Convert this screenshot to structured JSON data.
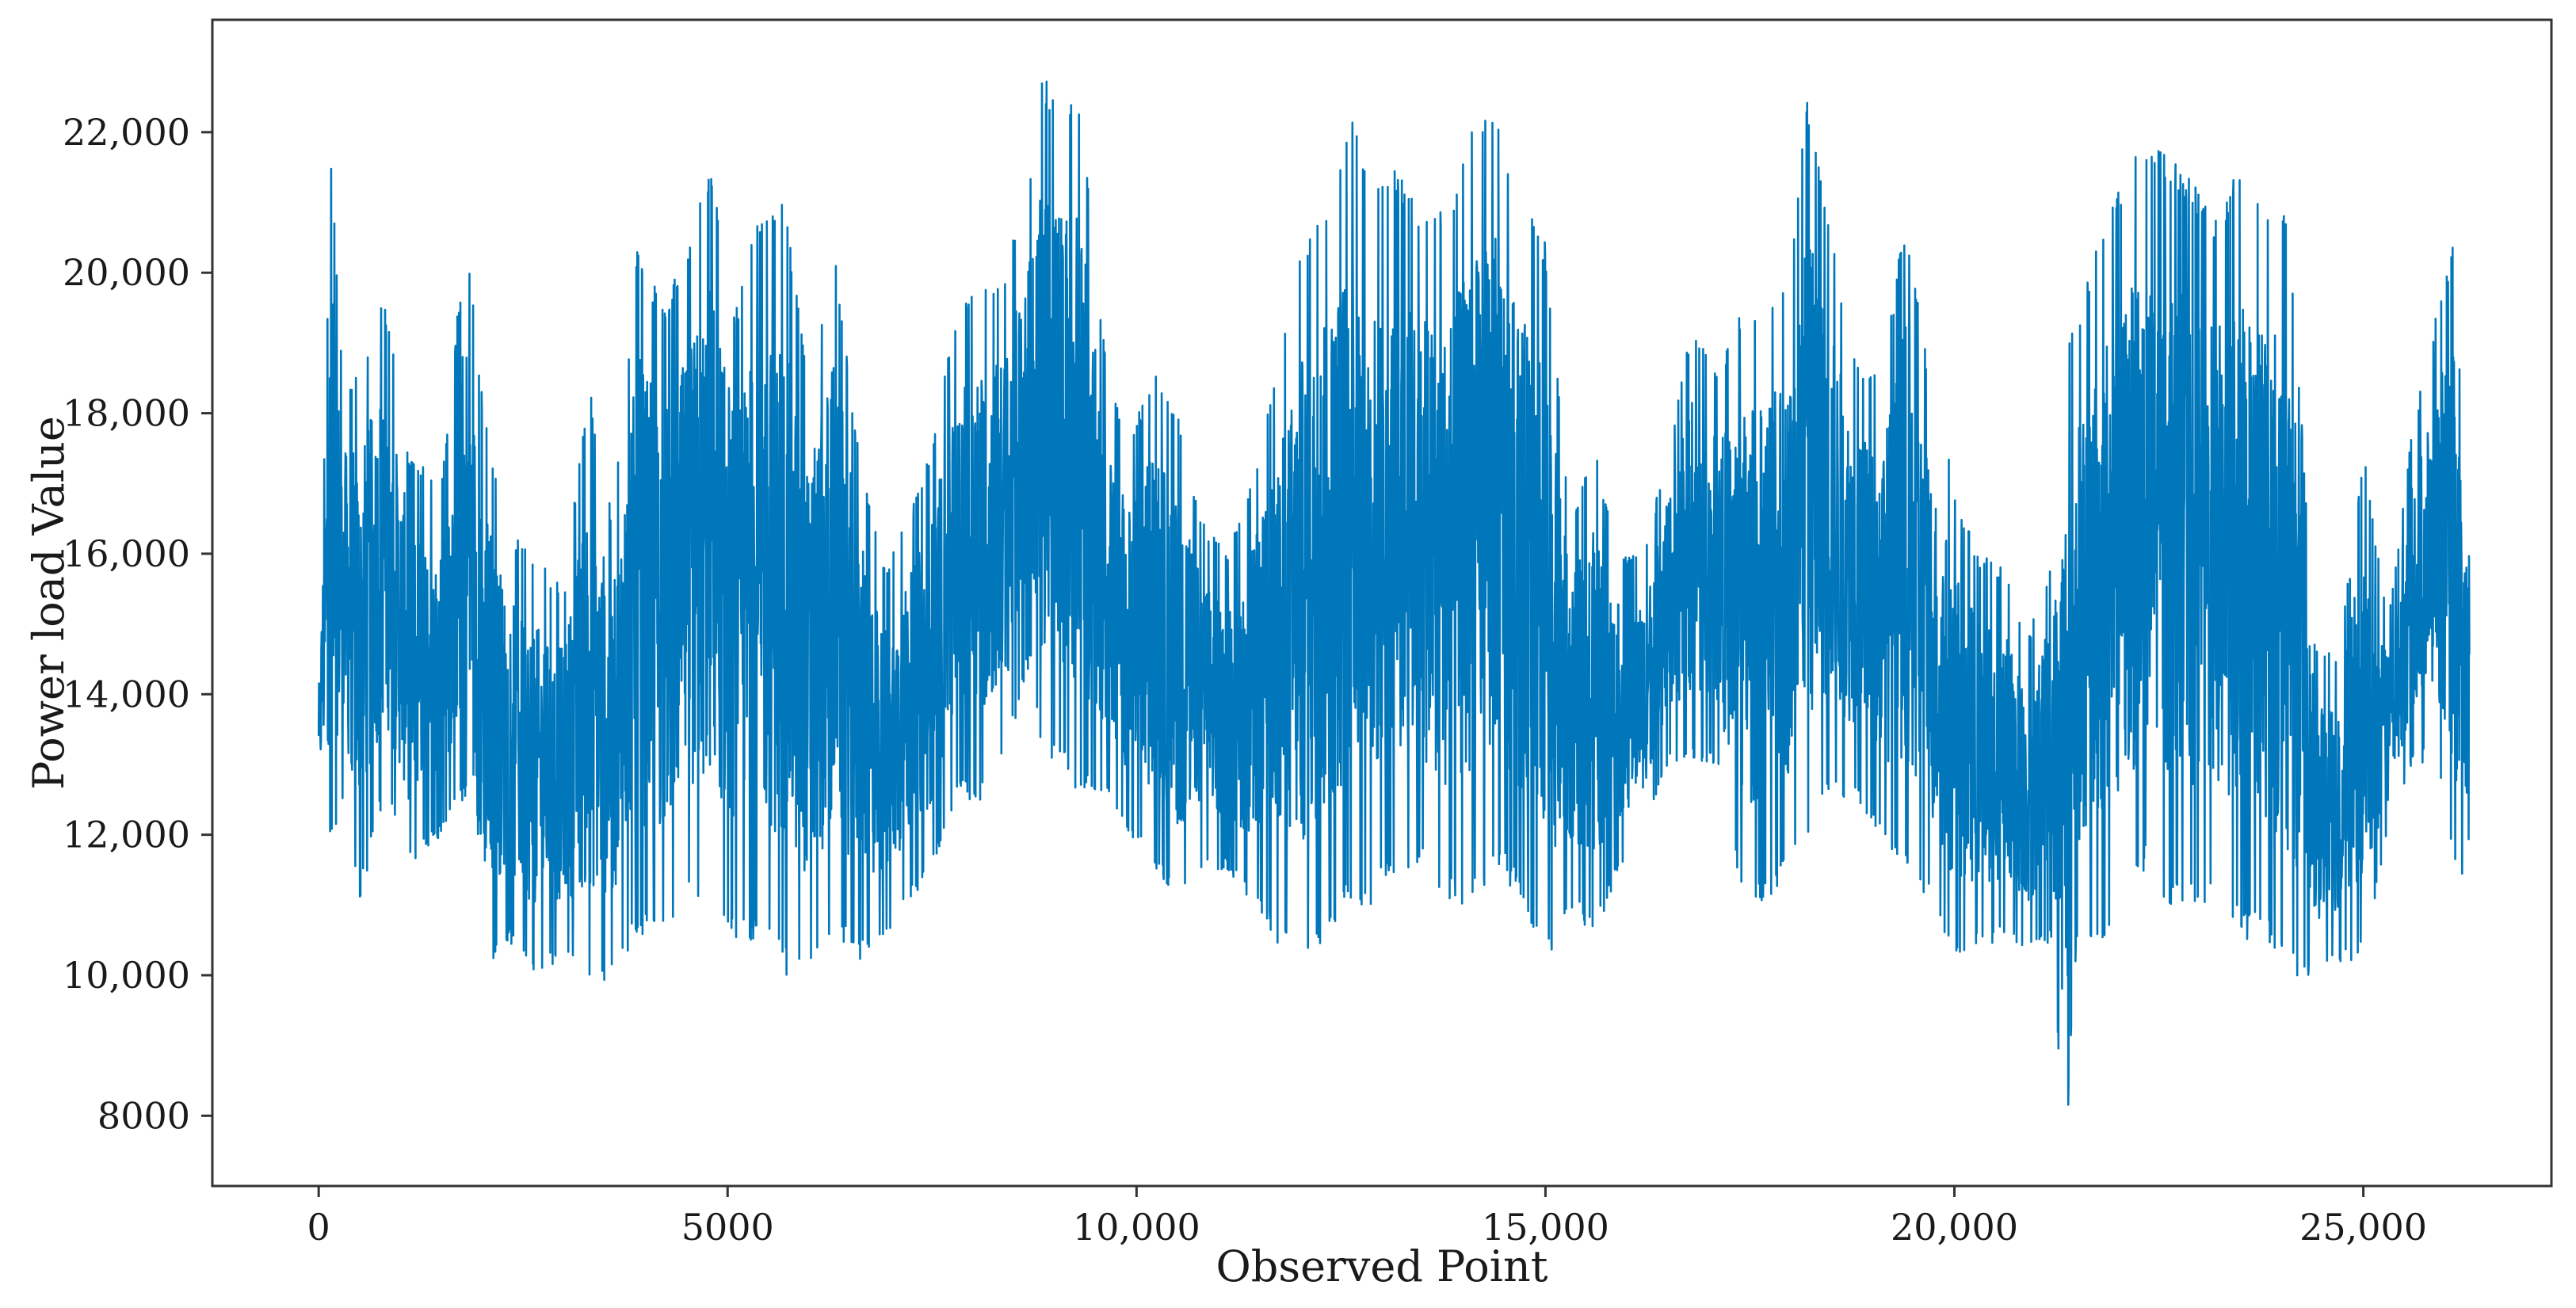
{
  "chart_data": {
    "type": "line",
    "title": "",
    "xlabel": "Observed Point",
    "ylabel": "Power load Value",
    "xlim": [
      -1300,
      27300
    ],
    "ylim": [
      7000,
      23600
    ],
    "xticks": [
      0,
      5000,
      10000,
      15000,
      20000,
      25000
    ],
    "xtick_labels": [
      "0",
      "5000",
      "10,000",
      "15,000",
      "20,000",
      "25,000"
    ],
    "yticks": [
      8000,
      10000,
      12000,
      14000,
      16000,
      18000,
      20000,
      22000
    ],
    "ytick_labels": [
      "8000",
      "10,000",
      "12,000",
      "14,000",
      "16,000",
      "18,000",
      "20,000",
      "22,000"
    ],
    "grid": false,
    "legend": "none",
    "line_color": "#0077BB",
    "n_points": 26300,
    "series": [
      {
        "envelope_x": [
          0,
          150,
          300,
          500,
          800,
          1100,
          1500,
          1800,
          2000,
          2300,
          2600,
          3000,
          3300,
          3600,
          3900,
          4200,
          4500,
          4800,
          5100,
          5400,
          5700,
          6000,
          6300,
          6600,
          6900,
          7200,
          7500,
          7800,
          8100,
          8400,
          8700,
          8850,
          9000,
          9300,
          9600,
          9900,
          10200,
          10500,
          10800,
          11100,
          11400,
          11700,
          12000,
          12300,
          12600,
          12900,
          13200,
          13500,
          13800,
          14100,
          14400,
          14700,
          15000,
          15300,
          15600,
          15900,
          16200,
          16500,
          16800,
          17100,
          17400,
          17700,
          18000,
          18200,
          18500,
          18800,
          19100,
          19400,
          19700,
          20000,
          20300,
          20600,
          20900,
          21200,
          21350,
          21500,
          21800,
          22100,
          22300,
          22600,
          22900,
          23200,
          23500,
          23800,
          24100,
          24400,
          24700,
          25000,
          25300,
          25600,
          25900,
          26100,
          26300
        ],
        "envelope_upper": [
          14000,
          21600,
          18500,
          18700,
          19700,
          17500,
          17000,
          20700,
          18300,
          16400,
          16000,
          15500,
          18500,
          16500,
          20500,
          19500,
          20300,
          21700,
          19500,
          20900,
          21000,
          18500,
          20600,
          17500,
          15800,
          16500,
          17500,
          19500,
          19900,
          20000,
          21500,
          22800,
          22600,
          22500,
          19000,
          17500,
          18700,
          18000,
          16500,
          16000,
          17000,
          18500,
          20500,
          21000,
          22300,
          21200,
          21500,
          20800,
          21000,
          22000,
          22300,
          21000,
          20500,
          16500,
          17500,
          16000,
          16000,
          17500,
          19300,
          18500,
          19500,
          19500,
          20000,
          22600,
          20500,
          18700,
          18500,
          20800,
          18500,
          17000,
          16000,
          15800,
          14800,
          16000,
          19200,
          19200,
          20800,
          21500,
          21800,
          21700,
          21300,
          20800,
          21600,
          21000,
          20800,
          14800,
          14500,
          17500,
          15000,
          17800,
          19500,
          20400,
          15800
        ],
        "envelope_lower": [
          12500,
          11800,
          12400,
          11000,
          12500,
          11500,
          12000,
          12500,
          10000,
          10500,
          10000,
          10200,
          9800,
          10000,
          10500,
          10500,
          11000,
          11000,
          10500,
          10500,
          10000,
          10000,
          10500,
          10200,
          10500,
          11000,
          11500,
          12500,
          12500,
          13000,
          14500,
          13000,
          13000,
          12500,
          12500,
          12000,
          11500,
          11000,
          11500,
          11500,
          11000,
          10500,
          10000,
          10500,
          11000,
          11000,
          11500,
          11500,
          11000,
          11000,
          11500,
          11000,
          10000,
          11000,
          10500,
          11500,
          12000,
          13000,
          13000,
          13000,
          11000,
          11000,
          11500,
          12000,
          12500,
          12500,
          12000,
          11500,
          11000,
          10200,
          10400,
          10500,
          10300,
          10500,
          7200,
          10500,
          10500,
          11000,
          11500,
          11000,
          11000,
          11000,
          10500,
          10500,
          10000,
          10000,
          10200,
          10200,
          12000,
          13000,
          13000,
          11500,
          11000
        ]
      }
    ]
  }
}
